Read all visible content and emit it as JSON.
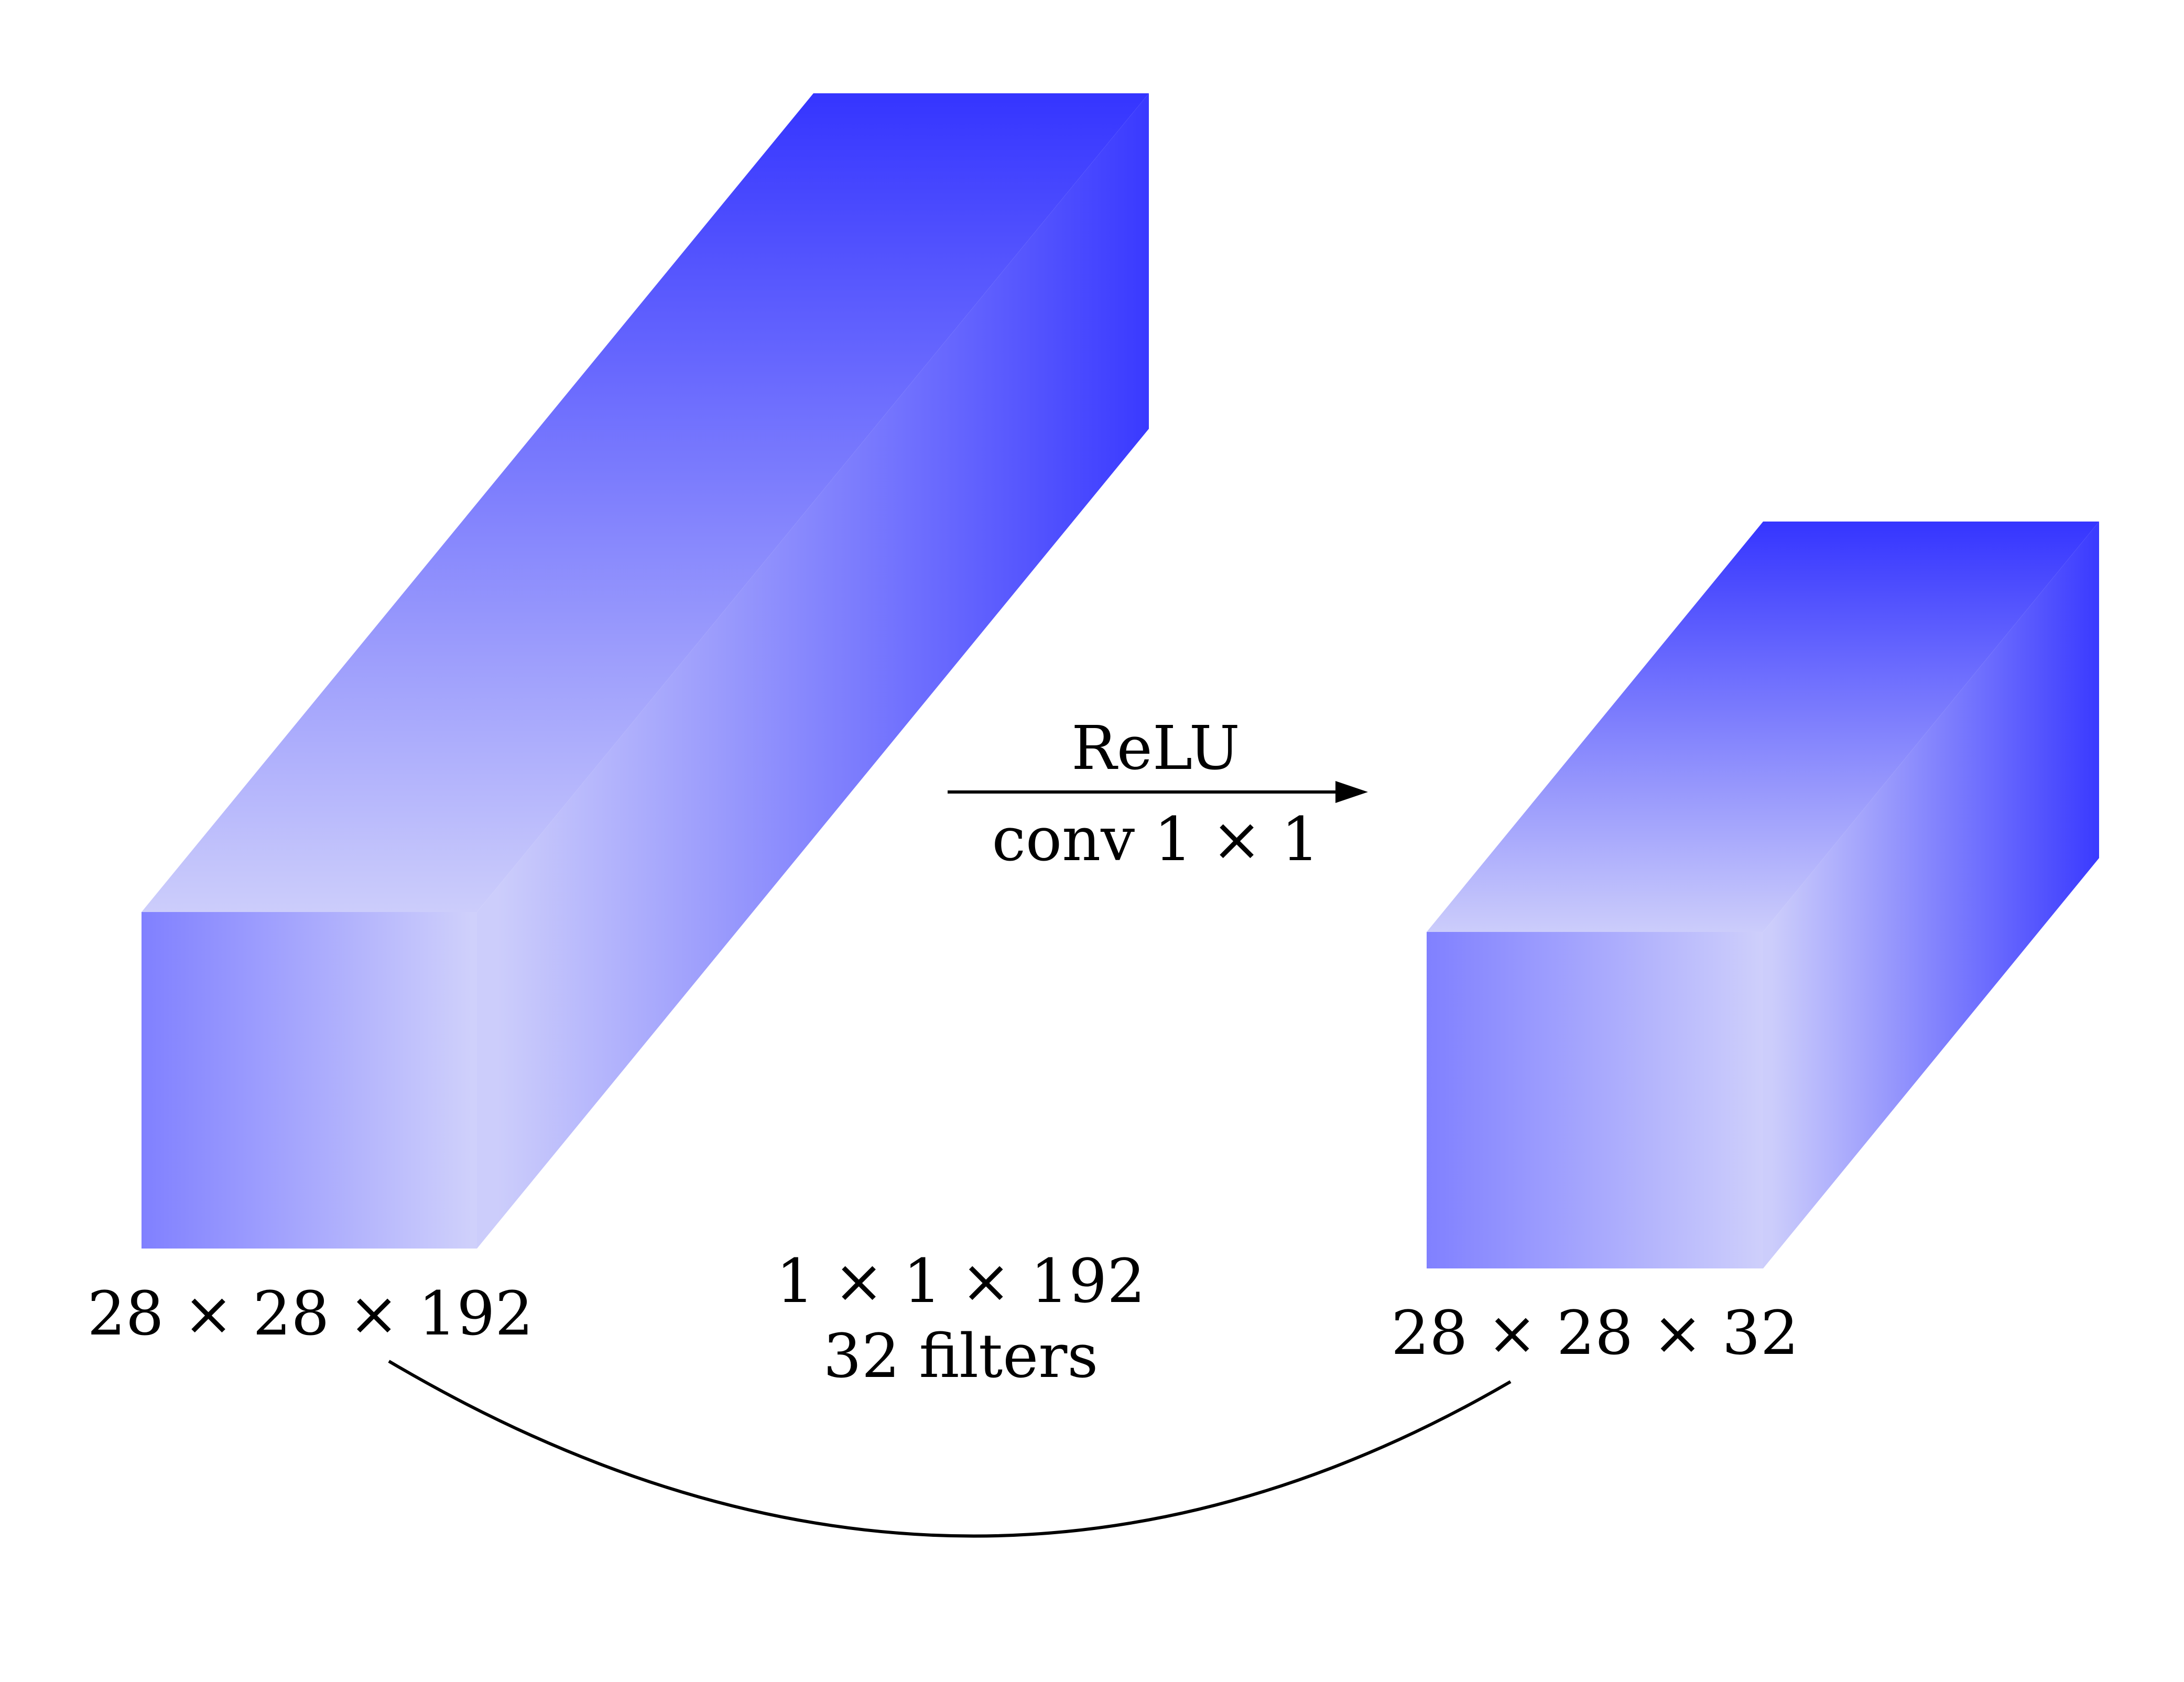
{
  "diagram": {
    "input_volume": {
      "dims_label": "28 × 28 × 192"
    },
    "output_volume": {
      "dims_label": "28 × 28 × 32"
    },
    "arrow": {
      "top_label": "ReLU",
      "bottom_label": "conv 1 × 1"
    },
    "filter_info": {
      "line1": "1 × 1 × 192",
      "line2": "32 filters"
    },
    "colors": {
      "box_deep": "#3535ff",
      "box_light": "#cccdfb",
      "line": "#000000"
    }
  }
}
